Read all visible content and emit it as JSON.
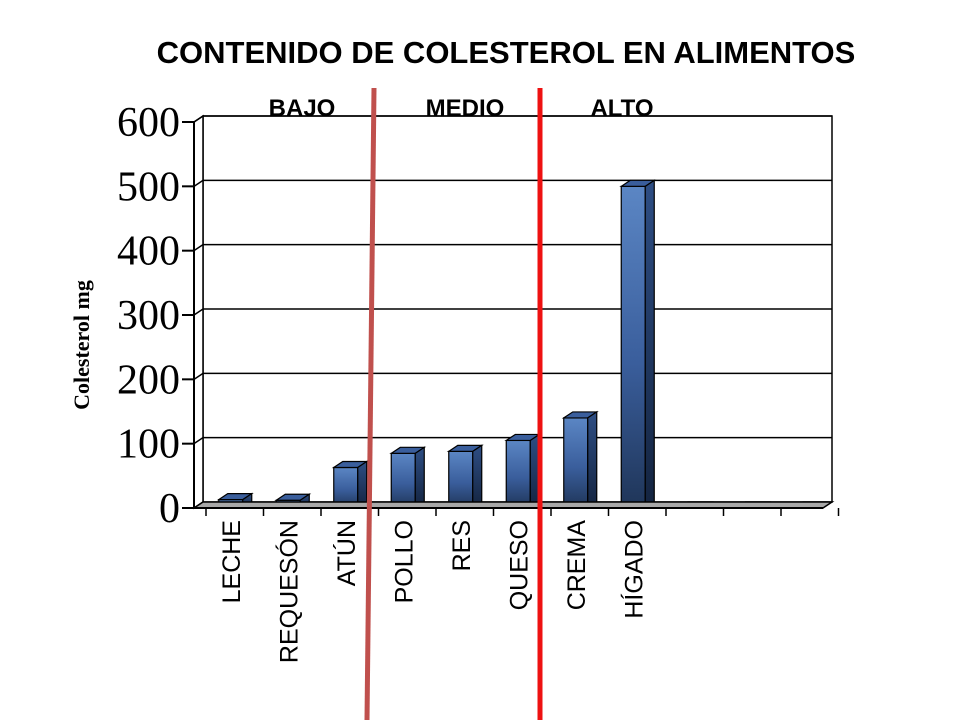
{
  "chart_data": {
    "type": "bar",
    "title": "CONTENIDO DE COLESTEROL EN ALIMENTOS",
    "ylabel": "Colesterol mg",
    "xlabel": "",
    "ylim": [
      0,
      600
    ],
    "yticks": [
      0,
      100,
      200,
      300,
      400,
      500,
      600
    ],
    "grid": true,
    "categories": [
      "LECHE",
      "REQUESÓN",
      "ATÚN",
      "POLLO",
      "RES",
      "QUESO",
      "CREMA",
      "HÍGADO",
      "",
      "",
      ""
    ],
    "values": [
      13,
      12,
      63,
      85,
      88,
      105,
      140,
      500,
      0,
      0,
      0
    ],
    "bar_color": "#3A5E9C",
    "zones": [
      {
        "label": "BAJO",
        "divider_color": ""
      },
      {
        "label": "MEDIO",
        "divider_color": "#C0504D"
      },
      {
        "label": "ALTO",
        "divider_color": "#EE1111"
      }
    ]
  }
}
